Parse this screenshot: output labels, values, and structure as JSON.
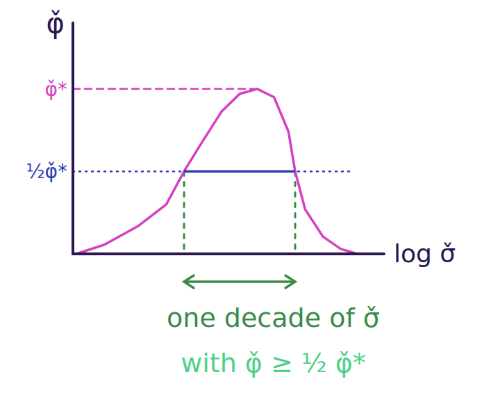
{
  "chart_data": {
    "type": "line",
    "x_label": "log σ̌",
    "y_label": "φ̌",
    "x": [
      0.03,
      0.28,
      0.59,
      0.84,
      1.0,
      1.16,
      1.34,
      1.5,
      1.66,
      1.81,
      1.94,
      2.0,
      2.09,
      2.25,
      2.41,
      2.56
    ],
    "values": [
      0.0,
      0.055,
      0.17,
      0.3,
      0.5,
      0.675,
      0.865,
      0.97,
      1.0,
      0.95,
      0.74,
      0.5,
      0.27,
      0.105,
      0.03,
      0.0
    ],
    "color": "#d63fc0",
    "xlim": [
      0,
      2.8
    ],
    "ylim": [
      0,
      1.4
    ],
    "yticks": [
      {
        "value": 1,
        "label": "φ̌*"
      },
      {
        "value": 0.5,
        "label": "½φ̌*"
      }
    ],
    "tick_labels": "y",
    "grid": false,
    "band": {
      "x": [
        1,
        2
      ],
      "y": 0.5,
      "color": "#2b3fb5"
    },
    "annotations": [
      "one decade of σ̌",
      "with φ̌ ≥ ½ φ̌*"
    ]
  }
}
